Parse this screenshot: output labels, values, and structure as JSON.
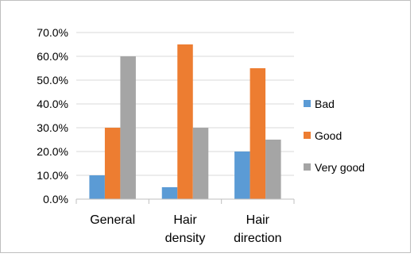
{
  "chart_data": {
    "type": "bar",
    "categories": [
      [
        "General"
      ],
      [
        "Hair",
        "density"
      ],
      [
        "Hair",
        "direction"
      ]
    ],
    "series": [
      {
        "name": "Bad",
        "color": "#5b9bd5",
        "values": [
          10,
          5,
          20
        ]
      },
      {
        "name": "Good",
        "color": "#ed7d31",
        "values": [
          30,
          65,
          55
        ]
      },
      {
        "name": "Very good",
        "color": "#a5a5a5",
        "values": [
          60,
          30,
          25
        ]
      }
    ],
    "yticks": [
      "0.0%",
      "10.0%",
      "20.0%",
      "30.0%",
      "40.0%",
      "50.0%",
      "60.0%",
      "70.0%"
    ],
    "ylim": [
      0,
      70
    ],
    "grid": true,
    "legend_position": "right",
    "title": "",
    "xlabel": "",
    "ylabel": ""
  }
}
